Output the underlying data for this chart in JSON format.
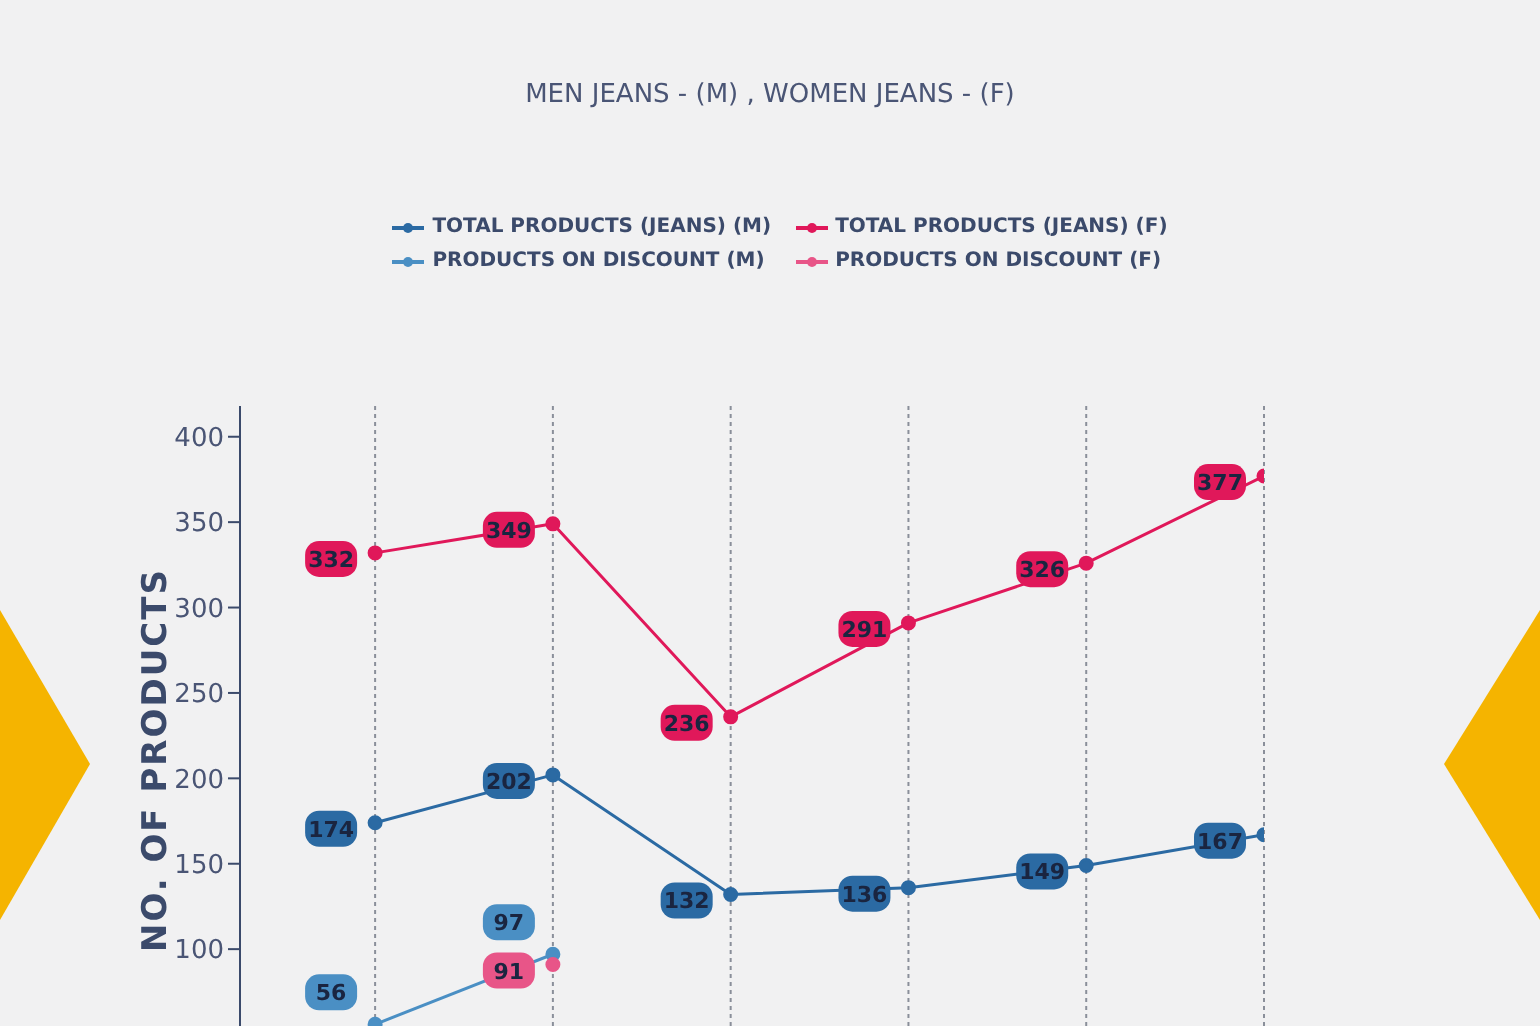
{
  "chart_data": {
    "type": "line",
    "title": "MEN JEANS - (M) , WOMEN JEANS - (F)",
    "ylabel": "NO. OF PRODUCTS",
    "categories": [
      null,
      null,
      null,
      null,
      null,
      null
    ],
    "series": [
      {
        "name": "TOTAL PRODUCTS (JEANS) (M)",
        "color": "#2b6aa3",
        "values": [
          174,
          202,
          132,
          136,
          149,
          167
        ]
      },
      {
        "name": "PRODUCTS ON DISCOUNT (M)",
        "color": "#4a8fc4",
        "values": [
          56,
          97,
          null,
          null,
          null,
          null
        ]
      },
      {
        "name": "TOTAL PRODUCTS (JEANS) (F)",
        "color": "#e0185a",
        "values": [
          332,
          349,
          236,
          291,
          326,
          377
        ]
      },
      {
        "name": "PRODUCTS ON DISCOUNT (F)",
        "color": "#e85588",
        "values": [
          null,
          91,
          null,
          null,
          null,
          null
        ]
      }
    ],
    "ylim": [
      55,
      418
    ],
    "yticks": [
      100,
      150,
      200,
      250,
      300,
      350,
      400
    ],
    "grid": "x",
    "legend": "top",
    "marker": "circle",
    "line_style": "solid",
    "data_labels": true
  }
}
